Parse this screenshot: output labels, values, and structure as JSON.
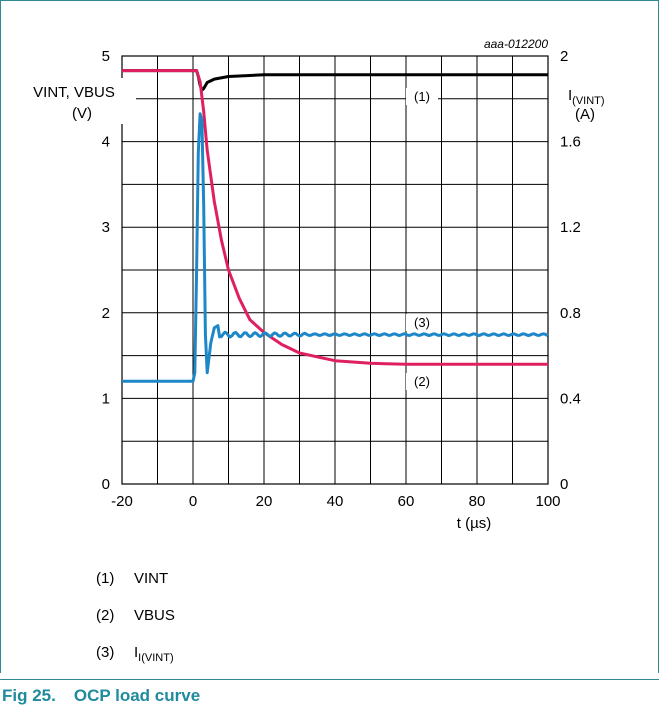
{
  "figure": {
    "number": "Fig 25.",
    "title": "OCP load curve"
  },
  "chart_data": {
    "type": "line",
    "id_label": "aaa-012200",
    "xlabel": "t (µs)",
    "xlim": [
      -20,
      100
    ],
    "x_ticks": [
      -20,
      0,
      20,
      40,
      60,
      80,
      100
    ],
    "left_axis": {
      "label_line1": "VINT, VBUS",
      "label_line2": "(V)",
      "ylim": [
        0,
        5
      ],
      "ticks": [
        0,
        1,
        2,
        3,
        4,
        5
      ]
    },
    "right_axis": {
      "label_main": "I",
      "label_sub": "(VINT)",
      "label_line2": "(A)",
      "ylim": [
        0,
        2
      ],
      "ticks": [
        "0",
        "0.4",
        "0.8",
        "1.2",
        "1.6",
        "2"
      ]
    },
    "grid": true,
    "series": [
      {
        "name": "VINT",
        "callout": "(1)",
        "color": "#000000",
        "axis": "left",
        "points": [
          [
            -20,
            4.83
          ],
          [
            0,
            4.83
          ],
          [
            1,
            4.83
          ],
          [
            1.5,
            4.76
          ],
          [
            2,
            4.66
          ],
          [
            2.5,
            4.6
          ],
          [
            3,
            4.62
          ],
          [
            4,
            4.69
          ],
          [
            6,
            4.73
          ],
          [
            10,
            4.76
          ],
          [
            20,
            4.78
          ],
          [
            100,
            4.78
          ]
        ]
      },
      {
        "name": "VBUS",
        "callout": "(2)",
        "color": "#e0205e",
        "axis": "left",
        "points": [
          [
            -20,
            4.83
          ],
          [
            0,
            4.83
          ],
          [
            1,
            4.83
          ],
          [
            2,
            4.7
          ],
          [
            3,
            4.35
          ],
          [
            4,
            3.9
          ],
          [
            6,
            3.3
          ],
          [
            8,
            2.85
          ],
          [
            10,
            2.5
          ],
          [
            13,
            2.17
          ],
          [
            16,
            1.92
          ],
          [
            20,
            1.77
          ],
          [
            25,
            1.63
          ],
          [
            30,
            1.53
          ],
          [
            40,
            1.44
          ],
          [
            50,
            1.41
          ],
          [
            60,
            1.4
          ],
          [
            100,
            1.4
          ]
        ]
      },
      {
        "name": "I(VINT)",
        "callout": "(3)",
        "color": "#1e87c8",
        "axis": "right",
        "points": [
          [
            -20,
            0.48
          ],
          [
            0,
            0.48
          ],
          [
            0.5,
            0.52
          ],
          [
            1,
            1.0
          ],
          [
            1.5,
            1.55
          ],
          [
            2,
            1.73
          ],
          [
            2.5,
            1.7
          ],
          [
            3,
            1.3
          ],
          [
            3.5,
            0.7
          ],
          [
            4,
            0.52
          ],
          [
            5,
            0.66
          ],
          [
            6,
            0.73
          ],
          [
            7,
            0.74
          ],
          [
            8,
            0.73
          ],
          [
            10,
            0.71
          ],
          [
            15,
            0.7
          ],
          [
            20,
            0.7
          ],
          [
            30,
            0.7
          ],
          [
            40,
            0.695
          ],
          [
            60,
            0.695
          ],
          [
            80,
            0.695
          ],
          [
            100,
            0.7
          ]
        ]
      }
    ]
  },
  "legend": [
    {
      "num": "(1)",
      "label": "VINT"
    },
    {
      "num": "(2)",
      "label": "VBUS"
    },
    {
      "num": "(3)",
      "label_main": "I",
      "label_sub": "I(VINT)"
    }
  ]
}
